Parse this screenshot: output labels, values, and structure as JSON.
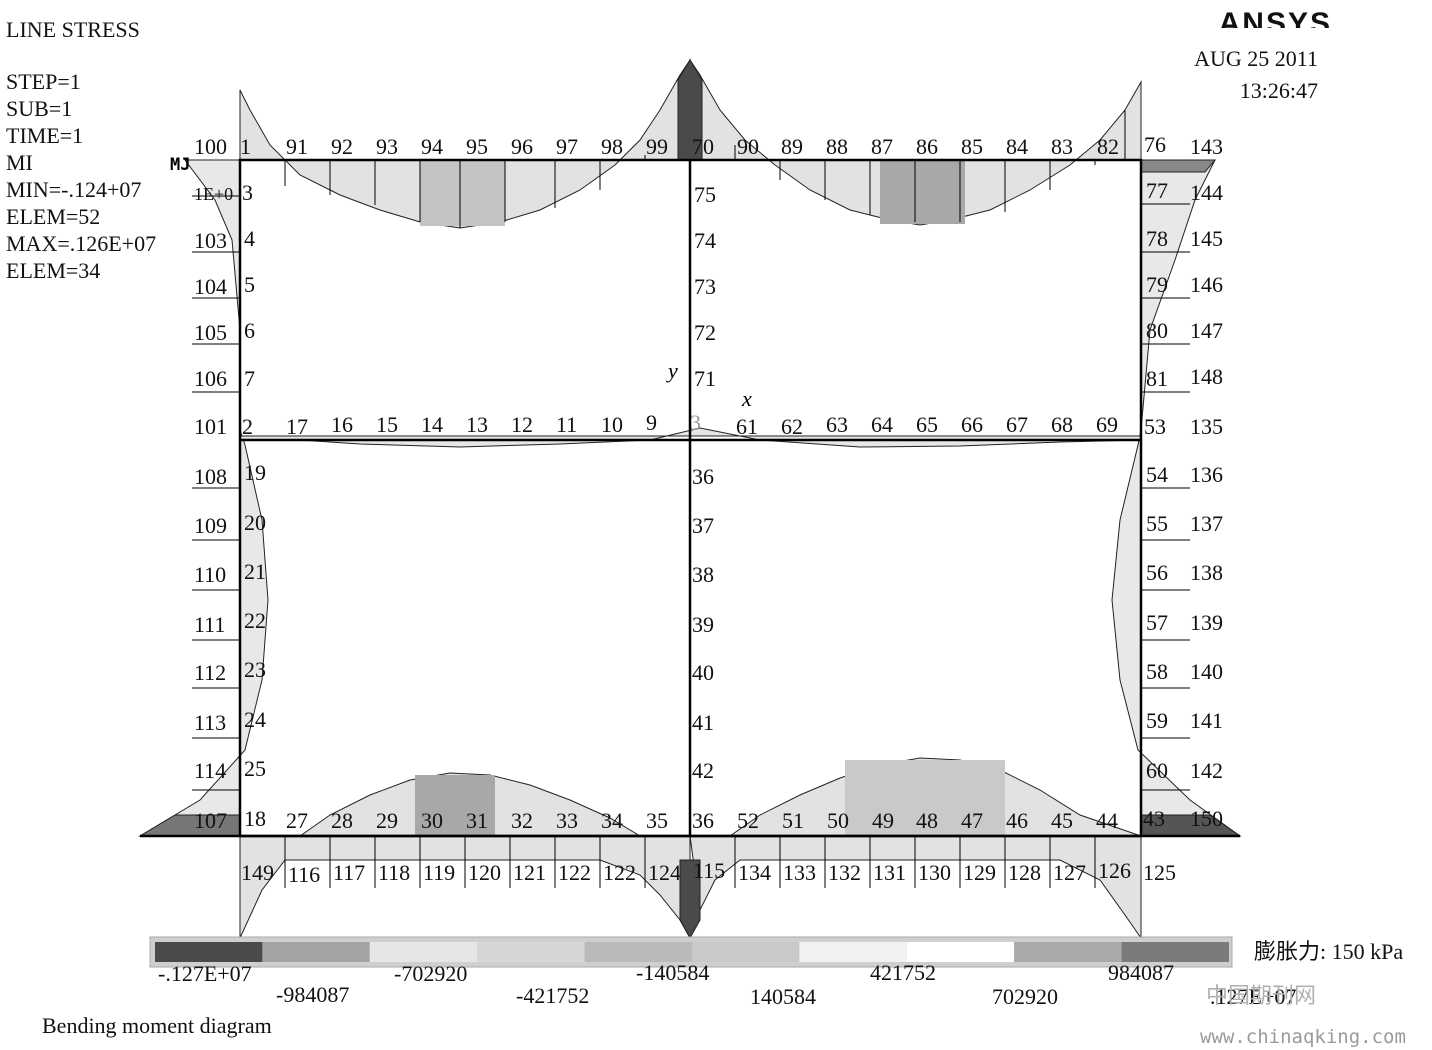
{
  "title": "LINE STRESS",
  "info_lines": [
    "STEP=1",
    "SUB=1",
    "TIME=1",
    "MI",
    "MIN=-.124+07",
    "ELEM=52",
    "MAX=.126E+07",
    "ELEM=34"
  ],
  "date": "AUG 25 2011",
  "time": "13:26:47",
  "logo_text": "ANSYS",
  "label_mi": "MJ",
  "label_overlap": "1E+0",
  "axis_x": "x",
  "axis_y": "y",
  "pressure_label": "膨胀力: 150 kPa",
  "caption": "Bending moment diagram",
  "watermark_cn": "中国期刊网",
  "watermark_url": "www.chinaqking.com",
  "legend": {
    "colors": [
      "#4a4a4a",
      "#a4a4a4",
      "#e6e6e6",
      "#d6d6d6",
      "#b9b9b9",
      "#c9c9c9",
      "#f2f2f2",
      "#ffffff",
      "#a9a9a9",
      "#7b7b7b"
    ],
    "labels_top": [
      "-.127E+07",
      "-702920",
      "-140584",
      "421752",
      "984087"
    ],
    "labels_bottom": [
      "-984087",
      "-421752",
      "140584",
      "702920",
      ".127E+07"
    ]
  },
  "element_labels": {
    "top_row_left": [
      "100",
      "1",
      "91",
      "92",
      "93",
      "94",
      "95",
      "96",
      "97",
      "98",
      "99"
    ],
    "top_row_right": [
      "70",
      "90",
      "89",
      "88",
      "87",
      "86",
      "85",
      "84",
      "83",
      "82",
      "76",
      "143"
    ],
    "mid_row_left": [
      "101",
      "2",
      "17",
      "16",
      "15",
      "14",
      "13",
      "12",
      "11",
      "10",
      "9"
    ],
    "mid_row_right": [
      "3",
      "61",
      "62",
      "63",
      "64",
      "65",
      "66",
      "67",
      "68",
      "69",
      "53",
      "135"
    ],
    "bottom_row_left": [
      "107",
      "18",
      "27",
      "28",
      "29",
      "30",
      "31",
      "32",
      "33",
      "34",
      "35"
    ],
    "bottom_row_right": [
      "36",
      "52",
      "51",
      "50",
      "49",
      "48",
      "47",
      "46",
      "45",
      "44",
      "43",
      "150"
    ],
    "lower_row": [
      "149",
      "116",
      "117",
      "118",
      "119",
      "120",
      "121",
      "122",
      "122",
      "124",
      "115",
      "134",
      "133",
      "132",
      "131",
      "130",
      "129",
      "128",
      "127",
      "126",
      "125"
    ],
    "left_upper_outer": [
      "103",
      "104",
      "105",
      "106"
    ],
    "left_upper_inner": [
      "3",
      "4",
      "5",
      "6",
      "7"
    ],
    "left_lower_outer": [
      "108",
      "109",
      "110",
      "111",
      "112",
      "113",
      "114"
    ],
    "left_lower_inner": [
      "19",
      "20",
      "21",
      "22",
      "23",
      "24",
      "25"
    ],
    "center_upper": [
      "75",
      "74",
      "73",
      "72",
      "71"
    ],
    "center_lower": [
      "36",
      "37",
      "38",
      "39",
      "40",
      "41",
      "42"
    ],
    "right_upper_inner": [
      "77",
      "78",
      "79",
      "80",
      "81"
    ],
    "right_upper_outer": [
      "144",
      "145",
      "146",
      "147",
      "148"
    ],
    "right_lower_inner": [
      "54",
      "55",
      "56",
      "57",
      "58",
      "59",
      "60"
    ],
    "right_lower_outer": [
      "136",
      "137",
      "138",
      "139",
      "140",
      "141",
      "142"
    ]
  }
}
